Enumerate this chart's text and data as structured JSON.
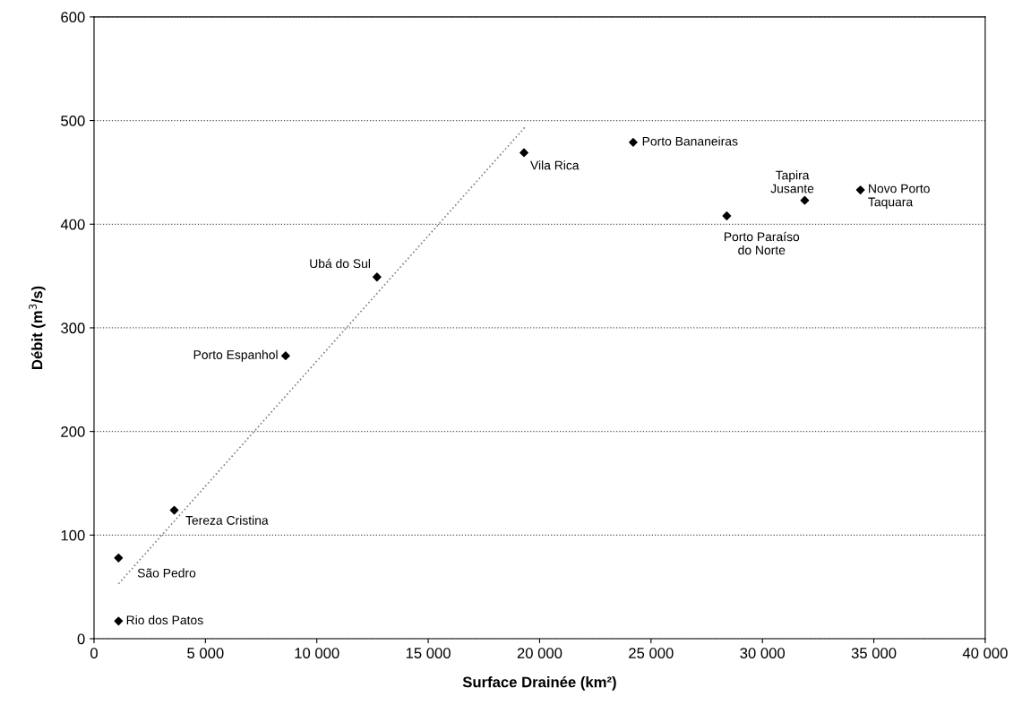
{
  "chart_data": {
    "type": "scatter",
    "xlabel": "Surface Drainée (km²)",
    "ylabel": "Débit (m$^{3}$/s)",
    "series": [
      {
        "color": "#000000",
        "marker": "diamond",
        "x": [
          1100,
          1100,
          3600,
          8600,
          12700,
          19300,
          24200,
          28400,
          31900,
          34400
        ],
        "values": [
          17,
          78,
          124,
          273,
          349,
          469,
          479,
          408,
          423,
          433
        ]
      },
      {
        "type": "line",
        "color": "#808080",
        "marker": "none",
        "line_style": "dotted",
        "x": [
          1100,
          19400
        ],
        "values": [
          53,
          495
        ]
      }
    ],
    "annotations": [
      {
        "text": "Rio dos Patos",
        "x": 1100,
        "y": 17
      },
      {
        "text": "São Pedro",
        "x": 1100,
        "y": 78
      },
      {
        "text": "Tereza Cristina",
        "x": 3600,
        "y": 124
      },
      {
        "text": "Porto Espanhol",
        "x": 8600,
        "y": 273
      },
      {
        "text": "Ubá do Sul",
        "x": 12700,
        "y": 349
      },
      {
        "text": "Vila Rica",
        "x": 19300,
        "y": 469
      },
      {
        "text": "Porto Bananeiras",
        "x": 24200,
        "y": 479
      },
      {
        "text": "Porto Paraíso\ndo Norte",
        "x": 28400,
        "y": 408
      },
      {
        "text": "Tapira\nJusante",
        "x": 31900,
        "y": 423
      },
      {
        "text": "Novo Porto\nTaquara",
        "x": 34400,
        "y": 433
      }
    ],
    "xlim": [
      0,
      40000
    ],
    "xticks": [
      0,
      {
        "value": 5000,
        "label": "5 000"
      },
      {
        "value": 10000,
        "label": "10 000"
      },
      {
        "value": 15000,
        "label": "15 000"
      },
      {
        "value": 20000,
        "label": "20 000"
      },
      {
        "value": 25000,
        "label": "25 000"
      },
      {
        "value": 30000,
        "label": "30 000"
      },
      {
        "value": 35000,
        "label": "35 000"
      },
      {
        "value": 40000,
        "label": "40 000"
      }
    ],
    "ylim": [
      0,
      600
    ],
    "yticks": [
      0,
      100,
      200,
      300,
      400,
      500,
      600
    ],
    "grid": "y"
  }
}
